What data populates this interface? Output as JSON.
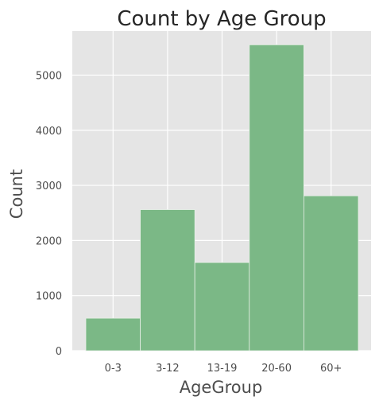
{
  "chart_data": {
    "type": "bar",
    "title": "Count by Age Group",
    "xlabel": "AgeGroup",
    "ylabel": "Count",
    "categories": [
      "0-3",
      "3-12",
      "13-19",
      "20-60",
      "60+"
    ],
    "values": [
      590,
      2560,
      1600,
      5550,
      2810
    ],
    "ylim": [
      0,
      5800
    ],
    "yticks": [
      0,
      1000,
      2000,
      3000,
      4000,
      5000
    ],
    "grid": true,
    "legend": "none",
    "colors": {
      "bar_fill": "#7bb886",
      "bar_edge": "#e6efe6",
      "plot_background": "#e5e5e5",
      "grid": "#ffffff"
    }
  }
}
